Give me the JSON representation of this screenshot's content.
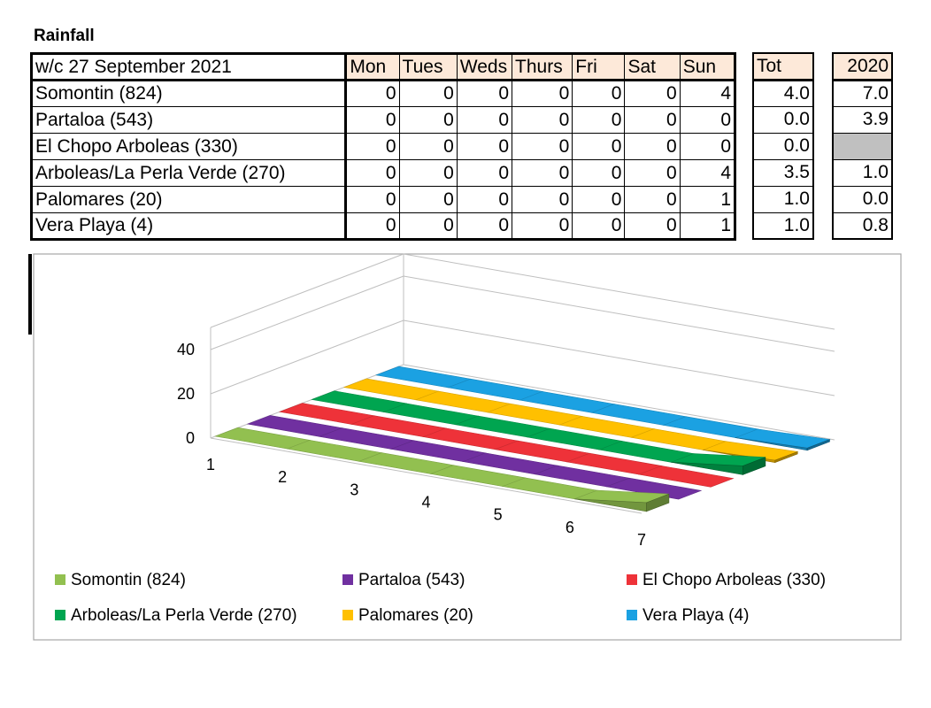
{
  "title": "Rainfall",
  "table": {
    "header_label": "w/c  27 September 2021",
    "days": [
      "Mon",
      "Tues",
      "Weds",
      "Thurs",
      "Fri",
      "Sat",
      "Sun"
    ],
    "tot_label": "Tot",
    "prev_label": "2020",
    "rows": [
      {
        "name": "Somontin (824)",
        "values": [
          "0",
          "0",
          "0",
          "0",
          "0",
          "0",
          "4"
        ],
        "tot": "4.0",
        "prev": "7.0"
      },
      {
        "name": "Partaloa (543)",
        "values": [
          "0",
          "0",
          "0",
          "0",
          "0",
          "0",
          "0"
        ],
        "tot": "0.0",
        "prev": "3.9"
      },
      {
        "name": "El Chopo Arboleas (330)",
        "values": [
          "0",
          "0",
          "0",
          "0",
          "0",
          "0",
          "0"
        ],
        "tot": "0.0",
        "prev": ""
      },
      {
        "name": "Arboleas/La Perla Verde (270)",
        "values": [
          "0",
          "0",
          "0",
          "0",
          "0",
          "0",
          "4"
        ],
        "tot": "3.5",
        "prev": "1.0"
      },
      {
        "name": "Palomares (20)",
        "values": [
          "0",
          "0",
          "0",
          "0",
          "0",
          "0",
          "1"
        ],
        "tot": "1.0",
        "prev": "0.0"
      },
      {
        "name": "Vera Playa (4)",
        "values": [
          "0",
          "0",
          "0",
          "0",
          "0",
          "0",
          "1"
        ],
        "tot": "1.0",
        "prev": "0.8"
      }
    ]
  },
  "chart_data": {
    "type": "area",
    "title": "",
    "xlabel": "",
    "ylabel": "",
    "x": [
      1,
      2,
      3,
      4,
      5,
      6,
      7
    ],
    "yticks": [
      0,
      20,
      40
    ],
    "ylim": [
      0,
      50
    ],
    "legend_position": "bottom",
    "series": [
      {
        "name": "Somontin (824)",
        "values": [
          0,
          0,
          0,
          0,
          0,
          0,
          4
        ],
        "color": "#92c050"
      },
      {
        "name": "Partaloa (543)",
        "values": [
          0,
          0,
          0,
          0,
          0,
          0,
          0
        ],
        "color": "#7030a0"
      },
      {
        "name": "El Chopo Arboleas (330)",
        "values": [
          0,
          0,
          0,
          0,
          0,
          0,
          0
        ],
        "color": "#ee3239"
      },
      {
        "name": "Arboleas/La Perla Verde (270)",
        "values": [
          0,
          0,
          0,
          0,
          0,
          0,
          4
        ],
        "color": "#00a550"
      },
      {
        "name": "Palomares (20)",
        "values": [
          0,
          0,
          0,
          0,
          0,
          0,
          1
        ],
        "color": "#ffc000"
      },
      {
        "name": "Vera Playa (4)",
        "values": [
          0,
          0,
          0,
          0,
          0,
          0,
          1
        ],
        "color": "#1ba1e2"
      }
    ]
  }
}
